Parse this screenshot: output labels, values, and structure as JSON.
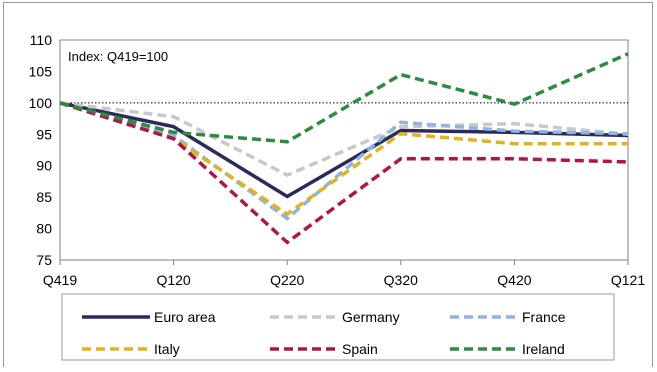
{
  "chart_data": {
    "type": "line",
    "annotation": "Index: Q419=100",
    "categories": [
      "Q419",
      "Q120",
      "Q220",
      "Q320",
      "Q420",
      "Q121"
    ],
    "ylim": [
      75,
      110
    ],
    "yticks": [
      75,
      80,
      85,
      90,
      95,
      100,
      105,
      110
    ],
    "reference_line": 100,
    "grid": false,
    "legend_position": "bottom",
    "series": [
      {
        "name": "Euro area",
        "color": "#2b2a5c",
        "dash": "solid",
        "values": [
          100,
          96.2,
          85.1,
          95.6,
          95.3,
          94.8
        ]
      },
      {
        "name": "Germany",
        "color": "#c8c8c8",
        "dash": "dashed",
        "values": [
          100,
          97.8,
          88.5,
          96.2,
          96.7,
          95.0
        ]
      },
      {
        "name": "France",
        "color": "#8fb4e3",
        "dash": "dashed",
        "values": [
          100,
          94.8,
          81.6,
          96.9,
          95.5,
          95.1
        ]
      },
      {
        "name": "Italy",
        "color": "#e2b41c",
        "dash": "dashed",
        "values": [
          100,
          94.3,
          82.3,
          95.1,
          93.5,
          93.5
        ]
      },
      {
        "name": "Spain",
        "color": "#b0154a",
        "dash": "dashed",
        "values": [
          100,
          94.3,
          77.8,
          91.1,
          91.1,
          90.6
        ]
      },
      {
        "name": "Ireland",
        "color": "#2e8b3e",
        "dash": "dashed",
        "values": [
          100,
          95.3,
          93.8,
          104.5,
          99.8,
          107.8
        ]
      }
    ]
  }
}
